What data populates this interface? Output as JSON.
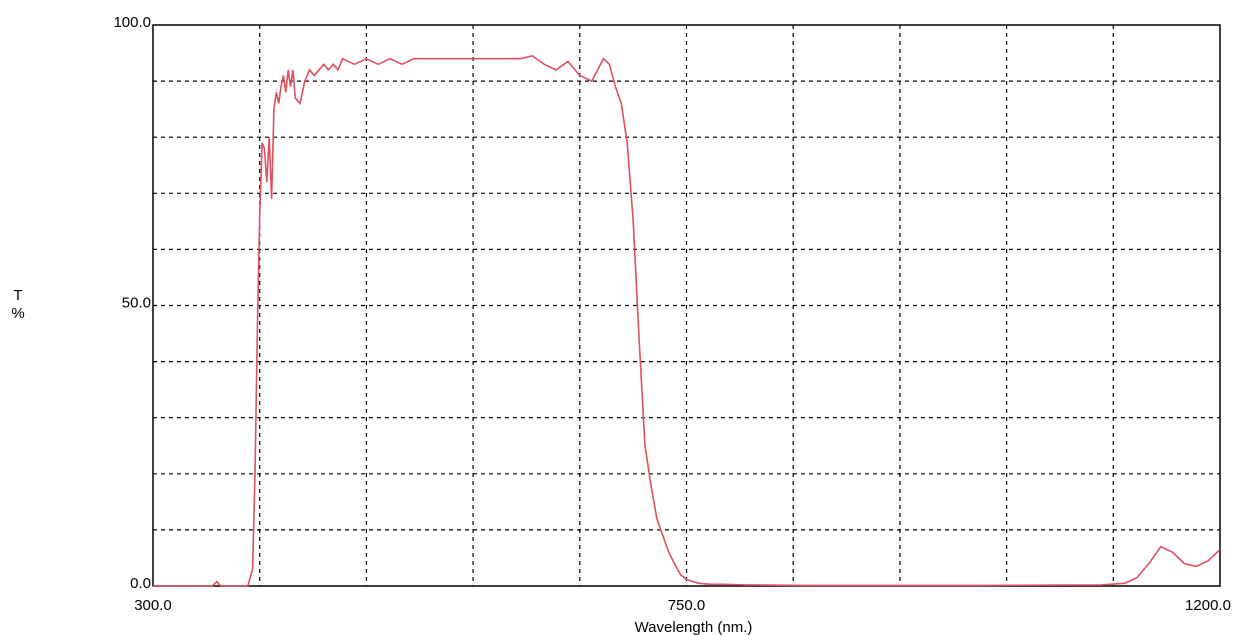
{
  "chart_data": {
    "type": "line",
    "xlabel": "Wavelength (nm.)",
    "ylabel": "T\n%",
    "xlim": [
      300,
      1200
    ],
    "ylim": [
      0,
      100
    ],
    "grid": true,
    "x_major_tick_labels": [
      "300.0",
      "750.0",
      "1200.0"
    ],
    "y_major_tick_labels": [
      "0.0",
      "50.0",
      "100.0"
    ],
    "x_grid_step": 90,
    "y_grid_step": 10,
    "line_color": "#e05060",
    "series": [
      {
        "x": [
          300,
          350,
          354,
          356,
          358,
          360,
          380,
          384,
          386,
          388,
          390,
          392,
          394,
          396,
          398,
          400,
          402,
          404,
          406,
          408,
          410,
          412,
          414,
          416,
          418,
          420,
          424,
          428,
          432,
          436,
          440,
          444,
          448,
          452,
          456,
          460,
          470,
          480,
          490,
          500,
          510,
          520,
          530,
          540,
          550,
          560,
          570,
          580,
          590,
          600,
          610,
          620,
          630,
          640,
          650,
          660,
          670,
          675,
          680,
          685,
          690,
          695,
          700,
          705,
          710,
          715,
          720,
          725,
          730,
          735,
          740,
          745,
          750,
          755,
          760,
          765,
          770,
          780,
          800,
          850,
          900,
          1000,
          1100,
          1120,
          1130,
          1140,
          1150,
          1160,
          1165,
          1170,
          1180,
          1190,
          1200
        ],
        "y": [
          0,
          0,
          0.8,
          0.2,
          0,
          0,
          0,
          3,
          20,
          45,
          66,
          79,
          78,
          72,
          80,
          69,
          85,
          88,
          86,
          89,
          91,
          88,
          92,
          89,
          92,
          87,
          86,
          90,
          92,
          91,
          92,
          93,
          92,
          93,
          92,
          94,
          93,
          94,
          93,
          94,
          93,
          94,
          94,
          94,
          94,
          94,
          94,
          94,
          94,
          94,
          94,
          94.5,
          93,
          92,
          93.5,
          91,
          90,
          92,
          94,
          93,
          89,
          86,
          79,
          65,
          44,
          25,
          18,
          12,
          9,
          6,
          4,
          2,
          1.2,
          0.8,
          0.5,
          0.4,
          0.3,
          0.3,
          0.2,
          0.1,
          0.1,
          0.1,
          0.2,
          0.5,
          1.5,
          4,
          7,
          6,
          5,
          4,
          3.5,
          4.5,
          6.5
        ]
      }
    ]
  }
}
